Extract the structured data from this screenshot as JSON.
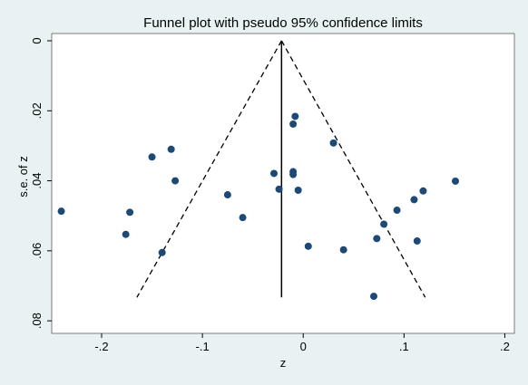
{
  "chart_data": {
    "type": "scatter",
    "title": "Funnel plot with pseudo 95% confidence limits",
    "xlabel": "z",
    "ylabel": "s.e. of z",
    "xlim": [
      -0.245,
      0.205
    ],
    "ylim": [
      0.0,
      0.081
    ],
    "y_reversed": true,
    "grid": false,
    "x_ticks": [
      -0.2,
      -0.1,
      0,
      0.1,
      0.2
    ],
    "x_tick_labels": [
      "-.2",
      "-.1",
      "0",
      ".1",
      ".2"
    ],
    "y_ticks": [
      0,
      0.02,
      0.04,
      0.06,
      0.08
    ],
    "y_tick_labels": [
      "0",
      ".02",
      ".04",
      ".06",
      ".08"
    ],
    "reference_line": {
      "x": -0.0215,
      "y_range": [
        0,
        0.0733
      ]
    },
    "confidence_limits": {
      "apex": [
        -0.0215,
        0
      ],
      "left_end": [
        -0.165,
        0.0733
      ],
      "right_end": [
        0.121,
        0.0733
      ],
      "style": "dashed"
    },
    "points": [
      {
        "x": -0.24,
        "y": 0.0487
      },
      {
        "x": -0.176,
        "y": 0.0553
      },
      {
        "x": -0.172,
        "y": 0.049
      },
      {
        "x": -0.15,
        "y": 0.0332
      },
      {
        "x": -0.14,
        "y": 0.0605
      },
      {
        "x": -0.131,
        "y": 0.031
      },
      {
        "x": -0.127,
        "y": 0.04
      },
      {
        "x": -0.075,
        "y": 0.044
      },
      {
        "x": -0.06,
        "y": 0.0505
      },
      {
        "x": -0.029,
        "y": 0.0379
      },
      {
        "x": -0.024,
        "y": 0.0424
      },
      {
        "x": -0.01,
        "y": 0.0374
      },
      {
        "x": -0.01,
        "y": 0.0382
      },
      {
        "x": -0.01,
        "y": 0.0238
      },
      {
        "x": -0.008,
        "y": 0.0216
      },
      {
        "x": -0.005,
        "y": 0.0427
      },
      {
        "x": 0.005,
        "y": 0.0587
      },
      {
        "x": 0.03,
        "y": 0.0292
      },
      {
        "x": 0.04,
        "y": 0.0597
      },
      {
        "x": 0.07,
        "y": 0.073
      },
      {
        "x": 0.073,
        "y": 0.0565
      },
      {
        "x": 0.08,
        "y": 0.0524
      },
      {
        "x": 0.093,
        "y": 0.0484
      },
      {
        "x": 0.11,
        "y": 0.0454
      },
      {
        "x": 0.113,
        "y": 0.0572
      },
      {
        "x": 0.119,
        "y": 0.0429
      },
      {
        "x": 0.151,
        "y": 0.0401
      }
    ],
    "colors": {
      "background": "#e8f2f2",
      "plot_background": "#ffffff",
      "marker": "#1a4a7a",
      "lines": "#000000"
    }
  }
}
